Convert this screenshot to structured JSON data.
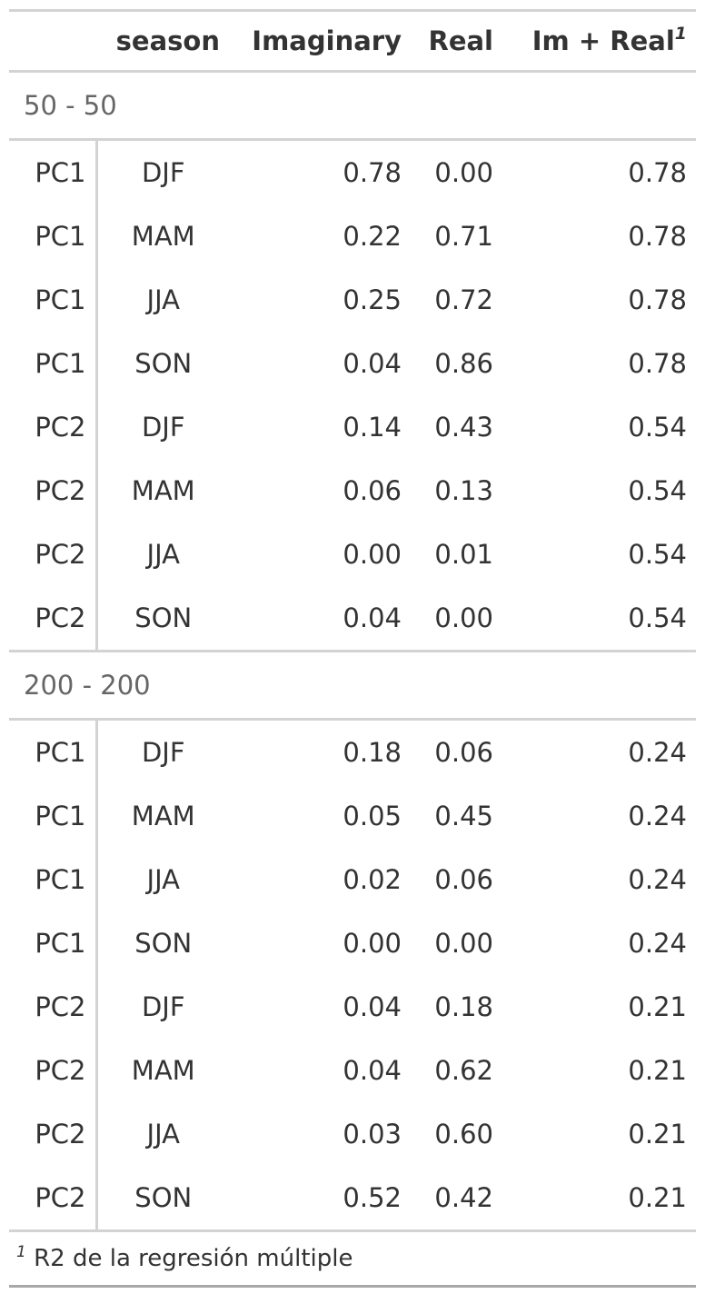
{
  "table": {
    "columns": {
      "stub": "",
      "season": "season",
      "imaginary": "Imaginary",
      "real": "Real",
      "sum": "Im + Real",
      "sum_footnote_mark": "1"
    },
    "groups": [
      {
        "label": "50 - 50",
        "rows": [
          {
            "pc": "PC1",
            "season": "DJF",
            "imaginary": "0.78",
            "real": "0.00",
            "sum": "0.78"
          },
          {
            "pc": "PC1",
            "season": "MAM",
            "imaginary": "0.22",
            "real": "0.71",
            "sum": "0.78"
          },
          {
            "pc": "PC1",
            "season": "JJA",
            "imaginary": "0.25",
            "real": "0.72",
            "sum": "0.78"
          },
          {
            "pc": "PC1",
            "season": "SON",
            "imaginary": "0.04",
            "real": "0.86",
            "sum": "0.78"
          },
          {
            "pc": "PC2",
            "season": "DJF",
            "imaginary": "0.14",
            "real": "0.43",
            "sum": "0.54"
          },
          {
            "pc": "PC2",
            "season": "MAM",
            "imaginary": "0.06",
            "real": "0.13",
            "sum": "0.54"
          },
          {
            "pc": "PC2",
            "season": "JJA",
            "imaginary": "0.00",
            "real": "0.01",
            "sum": "0.54"
          },
          {
            "pc": "PC2",
            "season": "SON",
            "imaginary": "0.04",
            "real": "0.00",
            "sum": "0.54"
          }
        ]
      },
      {
        "label": "200 - 200",
        "rows": [
          {
            "pc": "PC1",
            "season": "DJF",
            "imaginary": "0.18",
            "real": "0.06",
            "sum": "0.24"
          },
          {
            "pc": "PC1",
            "season": "MAM",
            "imaginary": "0.05",
            "real": "0.45",
            "sum": "0.24"
          },
          {
            "pc": "PC1",
            "season": "JJA",
            "imaginary": "0.02",
            "real": "0.06",
            "sum": "0.24"
          },
          {
            "pc": "PC1",
            "season": "SON",
            "imaginary": "0.00",
            "real": "0.00",
            "sum": "0.24"
          },
          {
            "pc": "PC2",
            "season": "DJF",
            "imaginary": "0.04",
            "real": "0.18",
            "sum": "0.21"
          },
          {
            "pc": "PC2",
            "season": "MAM",
            "imaginary": "0.04",
            "real": "0.62",
            "sum": "0.21"
          },
          {
            "pc": "PC2",
            "season": "JJA",
            "imaginary": "0.03",
            "real": "0.60",
            "sum": "0.21"
          },
          {
            "pc": "PC2",
            "season": "SON",
            "imaginary": "0.52",
            "real": "0.42",
            "sum": "0.21"
          }
        ]
      }
    ],
    "footnote": {
      "mark": "1",
      "text": "R2 de la regresión múltiple"
    }
  }
}
